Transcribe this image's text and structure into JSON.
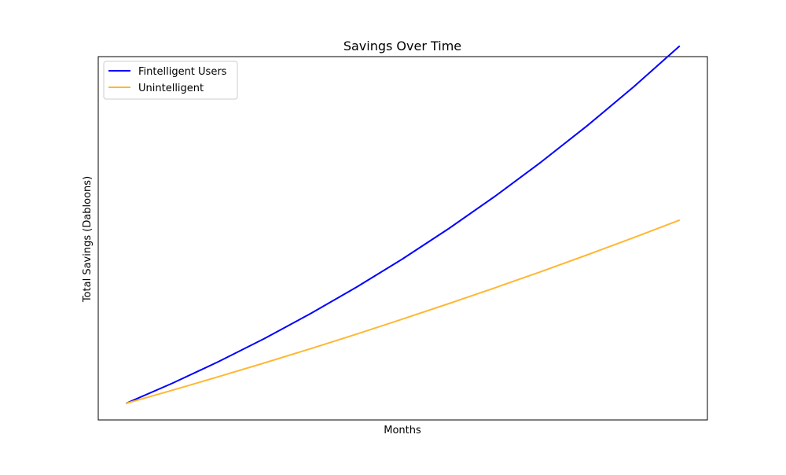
{
  "chart_data": {
    "type": "line",
    "title": "Savings Over Time",
    "xlabel": "Months",
    "ylabel": "Total Savings (Dabloons)",
    "xlim": [
      -0.6,
      12.6
    ],
    "ylim": [
      -0.05,
      1.05
    ],
    "grid": false,
    "legend_position": "top-left",
    "x": [
      0,
      1,
      2,
      3,
      4,
      5,
      6,
      7,
      8,
      9,
      10,
      11,
      12
    ],
    "series": [
      {
        "name": "Fintelligent Users",
        "color": "#0000ff",
        "values": [
          0,
          0.0608,
          0.1263,
          0.1965,
          0.2718,
          0.3523,
          0.4382,
          0.5298,
          0.6273,
          0.7311,
          0.8413,
          0.9584,
          1.0825
        ]
      },
      {
        "name": "Unintelligent",
        "color": "#ffb733",
        "values": [
          0,
          0.0398,
          0.0807,
          0.1227,
          0.1658,
          0.2101,
          0.2556,
          0.3023,
          0.3502,
          0.3994,
          0.45,
          0.5019,
          0.5552
        ]
      }
    ]
  }
}
